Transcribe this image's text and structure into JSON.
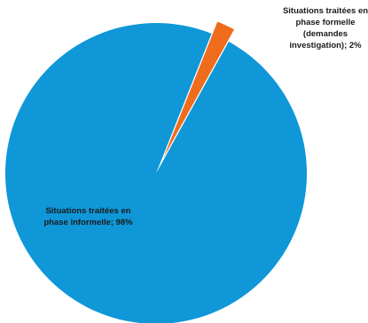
{
  "chart_data": {
    "type": "pie",
    "slices": [
      {
        "label": "Situations traitées en phase informelle; 98%",
        "value": 98,
        "color": "#0f97d8"
      },
      {
        "label": "Situations traitées en phase formelle (demandes investigation); 2%",
        "value": 2,
        "color": "#ef6c1c"
      }
    ],
    "legend": "none",
    "data_labels": "on-slices"
  }
}
